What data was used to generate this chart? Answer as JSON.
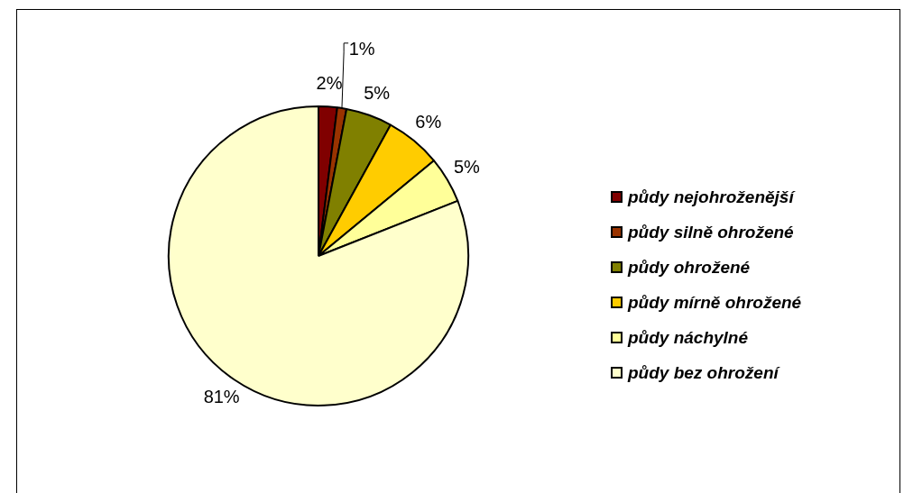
{
  "chart_data": {
    "type": "pie",
    "categories": [
      "půdy nejohroženější",
      "půdy silně ohrožené",
      "půdy ohrožené",
      "půdy mírně ohrožené",
      "půdy náchylné",
      "půdy bez ohrožení"
    ],
    "values": [
      2,
      1,
      5,
      6,
      5,
      81
    ],
    "colors": [
      "#800000",
      "#993300",
      "#808000",
      "#ffcc00",
      "#ffff99",
      "#ffffcc"
    ],
    "value_labels": [
      "2%",
      "1%",
      "5%",
      "6%",
      "5%",
      "81%"
    ],
    "legend": "right"
  }
}
